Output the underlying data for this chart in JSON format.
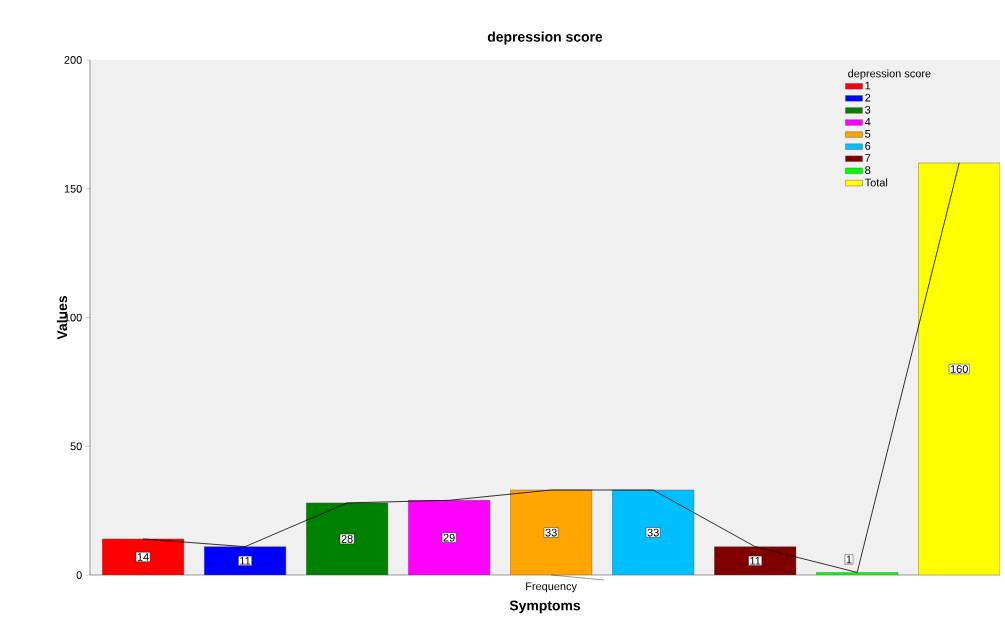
{
  "chart_data": {
    "type": "bar",
    "title": "depression score",
    "xlabel": "Symptoms",
    "ylabel": "Values",
    "legend_title": "depression score",
    "categories": [
      null,
      null,
      null,
      null,
      null,
      null,
      null,
      null,
      null
    ],
    "series": [
      {
        "name": "1",
        "color": "#ff0000",
        "values": [
          14,
          null,
          null,
          null,
          null,
          null,
          null,
          null,
          null
        ],
        "value_labels": [
          "14",
          null,
          null,
          null,
          null,
          null,
          null,
          null,
          null
        ]
      },
      {
        "name": "2",
        "color": "#0000ff",
        "values": [
          null,
          11,
          null,
          null,
          null,
          null,
          null,
          null,
          null
        ],
        "value_labels": [
          null,
          "11",
          null,
          null,
          null,
          null,
          null,
          null,
          null
        ]
      },
      {
        "name": "3",
        "color": "#008000",
        "values": [
          null,
          null,
          28,
          null,
          null,
          null,
          null,
          null,
          null
        ],
        "value_labels": [
          null,
          null,
          "28",
          null,
          null,
          null,
          null,
          null,
          null
        ]
      },
      {
        "name": "4",
        "color": "#ff00ff",
        "values": [
          null,
          null,
          null,
          29,
          null,
          null,
          null,
          null,
          null
        ],
        "value_labels": [
          null,
          null,
          null,
          "29",
          null,
          null,
          null,
          null,
          null
        ]
      },
      {
        "name": "5",
        "color": "#ffa500",
        "values": [
          null,
          null,
          null,
          null,
          33,
          null,
          null,
          null,
          null
        ],
        "value_labels": [
          null,
          null,
          null,
          null,
          "33",
          null,
          null,
          null,
          null
        ]
      },
      {
        "name": "6",
        "color": "#00bfff",
        "values": [
          null,
          null,
          null,
          null,
          null,
          33,
          null,
          null,
          null
        ],
        "value_labels": [
          null,
          null,
          null,
          null,
          null,
          "33",
          null,
          null,
          null
        ]
      },
      {
        "name": "7",
        "color": "#800000",
        "values": [
          null,
          null,
          null,
          null,
          null,
          null,
          11,
          null,
          null
        ],
        "value_labels": [
          null,
          null,
          null,
          null,
          null,
          null,
          "11",
          null,
          null
        ]
      },
      {
        "name": "8",
        "color": "#00ff00",
        "values": [
          null,
          null,
          null,
          null,
          null,
          null,
          null,
          1,
          null
        ],
        "value_labels": [
          null,
          null,
          null,
          null,
          null,
          null,
          null,
          "1",
          null
        ]
      },
      {
        "name": "Total",
        "color": "#ffff00",
        "values": [
          null,
          null,
          null,
          null,
          null,
          null,
          null,
          null,
          160
        ],
        "value_labels": [
          null,
          null,
          null,
          null,
          null,
          null,
          null,
          null,
          "160"
        ]
      },
      {
        "type": "line",
        "color": "#000000",
        "values": [
          14,
          11,
          28,
          29,
          33,
          33,
          11,
          1,
          160
        ]
      }
    ],
    "ylim": [
      0,
      200
    ],
    "yticks": [
      0,
      50,
      100,
      150,
      200
    ],
    "legend": "top right",
    "annotations": [
      "Frequency"
    ]
  }
}
